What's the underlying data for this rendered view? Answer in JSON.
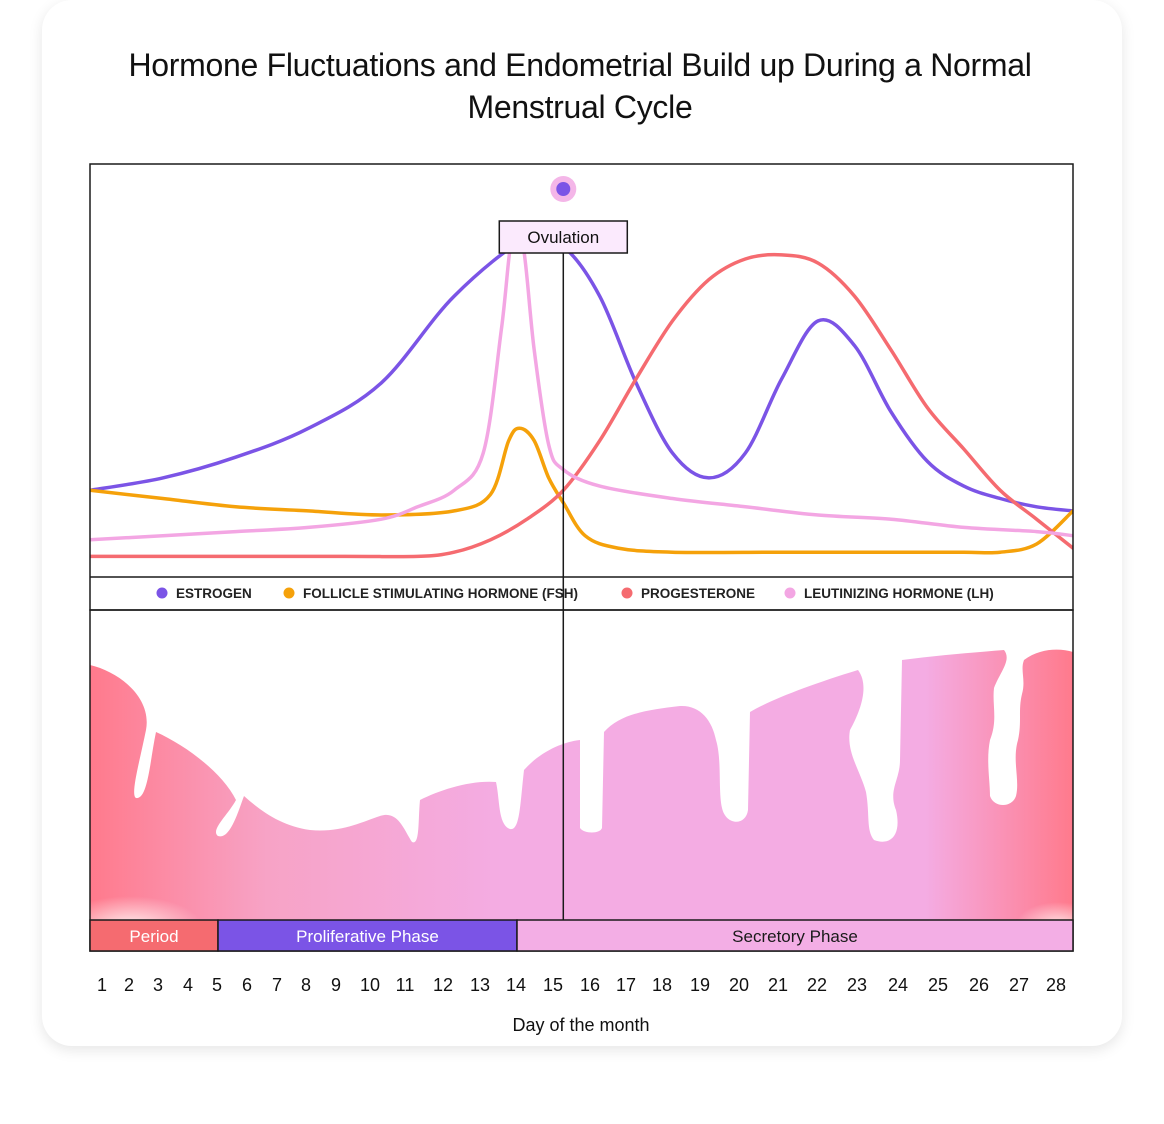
{
  "title": "Hormone Fluctuations and Endometrial Build up During a Normal Menstrual Cycle",
  "chart_data": {
    "type": "line",
    "title": "Hormone Fluctuations and Endometrial Build up During a Normal Menstrual Cycle",
    "xlabel": "Day of the month",
    "ylabel": "",
    "categories": [
      "1",
      "2",
      "3",
      "4",
      "5",
      "6",
      "7",
      "8",
      "9",
      "10",
      "11",
      "12",
      "13",
      "14",
      "15",
      "16",
      "17",
      "18",
      "19",
      "20",
      "21",
      "22",
      "23",
      "24",
      "25",
      "26",
      "27",
      "28"
    ],
    "ylim": [
      0,
      100
    ],
    "grid": false,
    "legend_position": "bottom",
    "annotation": {
      "label": "Ovulation",
      "day": 14
    },
    "series": [
      {
        "name": "ESTROGEN",
        "color": "#7b54e6",
        "points": [
          [
            1,
            21
          ],
          [
            3,
            24
          ],
          [
            5,
            29
          ],
          [
            7,
            36
          ],
          [
            9,
            47
          ],
          [
            11,
            68
          ],
          [
            13,
            82
          ],
          [
            14,
            80
          ],
          [
            15,
            68
          ],
          [
            16,
            47
          ],
          [
            17,
            30
          ],
          [
            18,
            24
          ],
          [
            19,
            30
          ],
          [
            20,
            48
          ],
          [
            21,
            62
          ],
          [
            22,
            56
          ],
          [
            23,
            40
          ],
          [
            24,
            28
          ],
          [
            25,
            22
          ],
          [
            26,
            19
          ],
          [
            27,
            17
          ],
          [
            28,
            16
          ]
        ]
      },
      {
        "name": "FOLLICLE STIMULATING HOMONE (FSH)",
        "color": "#f5a10a",
        "points": [
          [
            1,
            21
          ],
          [
            3,
            19
          ],
          [
            5,
            17
          ],
          [
            7,
            16
          ],
          [
            9,
            15
          ],
          [
            11,
            16
          ],
          [
            12,
            20
          ],
          [
            12.5,
            33
          ],
          [
            12.8,
            36
          ],
          [
            13.2,
            33
          ],
          [
            13.6,
            24
          ],
          [
            14,
            18
          ],
          [
            14.6,
            10
          ],
          [
            15.5,
            7
          ],
          [
            17,
            6
          ],
          [
            20,
            6
          ],
          [
            23,
            6
          ],
          [
            25,
            6
          ],
          [
            26,
            6
          ],
          [
            27,
            8
          ],
          [
            28,
            16
          ]
        ]
      },
      {
        "name": "PROGESTERONE",
        "color": "#f56b70",
        "points": [
          [
            1,
            5
          ],
          [
            4,
            5
          ],
          [
            8,
            5
          ],
          [
            10,
            5
          ],
          [
            11,
            6
          ],
          [
            12,
            9
          ],
          [
            13,
            14
          ],
          [
            14,
            21
          ],
          [
            15,
            33
          ],
          [
            16,
            48
          ],
          [
            17,
            62
          ],
          [
            18,
            72
          ],
          [
            19,
            77
          ],
          [
            20,
            78
          ],
          [
            21,
            76
          ],
          [
            22,
            68
          ],
          [
            23,
            55
          ],
          [
            24,
            41
          ],
          [
            25,
            31
          ],
          [
            26,
            21
          ],
          [
            27,
            14
          ],
          [
            28,
            7
          ]
        ]
      },
      {
        "name": "LEUTINIZING HORMONE (LH)",
        "color": "#f3a6e3",
        "points": [
          [
            1,
            9
          ],
          [
            3,
            10
          ],
          [
            5,
            11
          ],
          [
            7,
            12
          ],
          [
            9,
            14
          ],
          [
            10,
            17
          ],
          [
            11,
            21
          ],
          [
            11.8,
            30
          ],
          [
            12.3,
            60
          ],
          [
            12.6,
            83
          ],
          [
            12.9,
            80
          ],
          [
            13.2,
            55
          ],
          [
            13.6,
            32
          ],
          [
            14,
            26
          ],
          [
            15,
            22
          ],
          [
            17,
            19
          ],
          [
            19,
            17
          ],
          [
            21,
            15
          ],
          [
            23,
            14
          ],
          [
            25,
            12
          ],
          [
            27,
            11
          ],
          [
            28,
            10
          ]
        ]
      }
    ],
    "legend": [
      {
        "label": "ESTROGEN",
        "color": "#7b54e6"
      },
      {
        "label": "FOLLICLE STIMULATING HORMONE (FSH)",
        "color": "#f5a10a"
      },
      {
        "label": "PROGESTERONE",
        "color": "#f56b70"
      },
      {
        "label": "LEUTINIZING HORMONE (LH)",
        "color": "#f3a6e3"
      }
    ],
    "phases": [
      {
        "label": "Period",
        "start": 1,
        "end": 5,
        "color": "#f56b70"
      },
      {
        "label": "Proliferative Phase",
        "start": 5,
        "end": 14,
        "color": "#7b54e6"
      },
      {
        "label": "Secretory Phase",
        "start": 14,
        "end": 28,
        "color": "#f3aee5"
      }
    ]
  }
}
